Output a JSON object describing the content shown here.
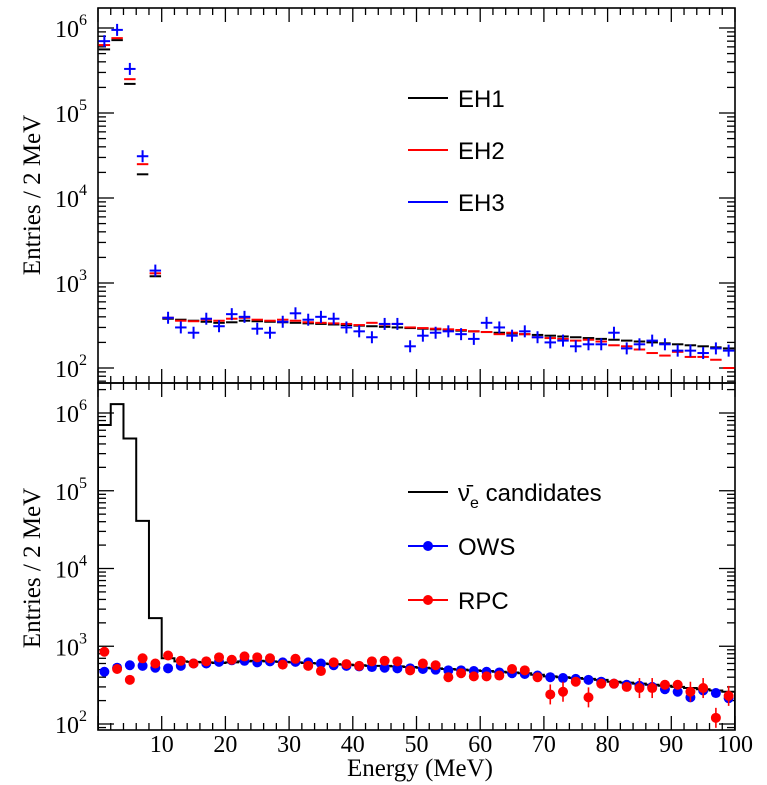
{
  "chart_data": [
    {
      "type": "scatter",
      "panel": "top",
      "ylabel": "Entries / 2 MeV",
      "xlim": [
        0,
        100
      ],
      "ylim": [
        80,
        1000000
      ],
      "yscale": "log",
      "y_tick_labels": [
        {
          "base": "10",
          "exp": "2",
          "value": 100
        },
        {
          "base": "10",
          "exp": "3",
          "value": 1000
        },
        {
          "base": "10",
          "exp": "4",
          "value": 10000
        },
        {
          "base": "10",
          "exp": "5",
          "value": 100000
        },
        {
          "base": "10",
          "exp": "6",
          "value": 1000000
        }
      ],
      "legend_position": "upper-right",
      "series": [
        {
          "name": "EH1",
          "color": "#000000",
          "marker": "dash",
          "x": [
            1,
            3,
            5,
            7,
            9,
            11,
            13,
            15,
            17,
            19,
            21,
            23,
            25,
            27,
            29,
            31,
            33,
            35,
            37,
            39,
            41,
            43,
            45,
            47,
            49,
            51,
            53,
            55,
            57,
            59,
            61,
            63,
            65,
            67,
            69,
            71,
            73,
            75,
            77,
            79,
            81,
            83,
            85,
            87,
            89,
            91,
            93,
            95,
            97,
            99
          ],
          "y": [
            560000,
            720000,
            220000,
            19000,
            1200,
            380,
            370,
            360,
            350,
            340,
            345,
            360,
            355,
            350,
            345,
            340,
            335,
            330,
            325,
            320,
            315,
            310,
            305,
            300,
            295,
            290,
            285,
            280,
            275,
            270,
            265,
            260,
            255,
            250,
            245,
            240,
            235,
            230,
            225,
            220,
            215,
            210,
            205,
            200,
            195,
            190,
            185,
            180,
            175,
            170
          ]
        },
        {
          "name": "EH2",
          "color": "#ff0000",
          "marker": "dash",
          "x": [
            1,
            3,
            5,
            7,
            9,
            11,
            13,
            15,
            17,
            19,
            21,
            23,
            25,
            27,
            29,
            31,
            33,
            35,
            37,
            39,
            41,
            43,
            45,
            47,
            49,
            51,
            53,
            55,
            57,
            59,
            61,
            63,
            65,
            67,
            69,
            71,
            73,
            75,
            77,
            79,
            81,
            83,
            85,
            87,
            89,
            91,
            93,
            95,
            97,
            99
          ],
          "y": [
            630000,
            760000,
            250000,
            25000,
            1300,
            390,
            360,
            355,
            370,
            360,
            380,
            390,
            370,
            360,
            370,
            360,
            345,
            340,
            335,
            330,
            320,
            340,
            325,
            330,
            300,
            295,
            290,
            285,
            280,
            270,
            265,
            250,
            260,
            250,
            230,
            225,
            220,
            210,
            215,
            205,
            185,
            180,
            165,
            150,
            140,
            155,
            135,
            135,
            125,
            100
          ]
        },
        {
          "name": "EH3",
          "color": "#0000ff",
          "marker": "cross",
          "x": [
            1,
            3,
            5,
            7,
            9,
            11,
            13,
            15,
            17,
            19,
            21,
            23,
            25,
            27,
            29,
            31,
            33,
            35,
            37,
            39,
            41,
            43,
            45,
            47,
            49,
            51,
            53,
            55,
            57,
            59,
            61,
            63,
            65,
            67,
            69,
            71,
            73,
            75,
            77,
            79,
            81,
            83,
            85,
            87,
            89,
            91,
            93,
            95,
            97,
            99
          ],
          "y": [
            700000,
            950000,
            330000,
            31000,
            1400,
            390,
            300,
            260,
            380,
            310,
            430,
            400,
            290,
            260,
            350,
            440,
            370,
            400,
            380,
            300,
            270,
            230,
            330,
            330,
            180,
            240,
            260,
            270,
            250,
            220,
            340,
            300,
            240,
            270,
            230,
            200,
            210,
            180,
            190,
            190,
            260,
            170,
            190,
            210,
            190,
            160,
            160,
            150,
            170,
            160
          ]
        }
      ]
    },
    {
      "type": "line",
      "panel": "bottom",
      "xlabel": "Energy (MeV)",
      "ylabel": "Entries / 2 MeV",
      "xlim": [
        0,
        100
      ],
      "ylim": [
        100,
        2000000
      ],
      "yscale": "log",
      "x_ticks": [
        10,
        20,
        30,
        40,
        50,
        60,
        70,
        80,
        90,
        100
      ],
      "y_tick_labels": [
        {
          "base": "10",
          "exp": "2",
          "value": 100
        },
        {
          "base": "10",
          "exp": "3",
          "value": 1000
        },
        {
          "base": "10",
          "exp": "4",
          "value": 10000
        },
        {
          "base": "10",
          "exp": "5",
          "value": 100000
        },
        {
          "base": "10",
          "exp": "6",
          "value": 1000000
        }
      ],
      "legend_position": "upper-right",
      "series": [
        {
          "name": "ν̄e candidates",
          "legend_main": "ν̄",
          "legend_sub": "e",
          "legend_rest": " candidates",
          "color": "#000000",
          "marker": "histogram",
          "x": [
            1,
            3,
            5,
            7,
            9,
            11,
            13,
            15,
            17,
            19,
            21,
            23,
            25,
            27,
            29,
            31,
            33,
            35,
            37,
            39,
            41,
            43,
            45,
            47,
            49,
            51,
            53,
            55,
            57,
            59,
            61,
            63,
            65,
            67,
            69,
            71,
            73,
            75,
            77,
            79,
            81,
            83,
            85,
            87,
            89,
            91,
            93,
            95,
            97,
            99
          ],
          "y": [
            700000,
            1300000,
            470000,
            41000,
            2300,
            700,
            640,
            630,
            620,
            610,
            620,
            640,
            650,
            640,
            630,
            620,
            610,
            600,
            590,
            580,
            570,
            560,
            560,
            550,
            540,
            530,
            520,
            510,
            500,
            490,
            480,
            470,
            460,
            450,
            430,
            410,
            400,
            390,
            380,
            370,
            350,
            340,
            330,
            320,
            310,
            300,
            290,
            280,
            270,
            260
          ]
        },
        {
          "name": "OWS",
          "color": "#0000ff",
          "marker": "circle",
          "x": [
            1,
            3,
            5,
            7,
            9,
            11,
            13,
            15,
            17,
            19,
            21,
            23,
            25,
            27,
            29,
            31,
            33,
            35,
            37,
            39,
            41,
            43,
            45,
            47,
            49,
            51,
            53,
            55,
            57,
            59,
            61,
            63,
            65,
            67,
            69,
            71,
            73,
            75,
            77,
            79,
            81,
            83,
            85,
            87,
            89,
            91,
            93,
            95,
            97,
            99
          ],
          "y": [
            470,
            530,
            570,
            560,
            530,
            520,
            560,
            600,
            600,
            630,
            660,
            650,
            620,
            640,
            620,
            630,
            620,
            600,
            570,
            560,
            550,
            540,
            530,
            520,
            520,
            510,
            500,
            490,
            490,
            480,
            470,
            460,
            450,
            440,
            420,
            400,
            390,
            380,
            370,
            350,
            330,
            320,
            310,
            300,
            280,
            260,
            220,
            270,
            250,
            215
          ]
        },
        {
          "name": "RPC",
          "color": "#ff0000",
          "marker": "circle",
          "x": [
            1,
            3,
            5,
            7,
            9,
            11,
            13,
            15,
            17,
            19,
            21,
            23,
            25,
            27,
            29,
            31,
            33,
            35,
            37,
            39,
            41,
            43,
            45,
            47,
            49,
            51,
            53,
            55,
            57,
            59,
            61,
            63,
            65,
            67,
            69,
            71,
            73,
            75,
            77,
            79,
            81,
            83,
            85,
            87,
            89,
            91,
            93,
            95,
            97,
            99
          ],
          "y": [
            850,
            510,
            370,
            700,
            600,
            760,
            650,
            600,
            640,
            720,
            670,
            740,
            720,
            700,
            580,
            690,
            560,
            480,
            620,
            590,
            560,
            640,
            650,
            640,
            490,
            600,
            570,
            400,
            450,
            410,
            410,
            420,
            510,
            490,
            400,
            240,
            260,
            350,
            220,
            330,
            330,
            300,
            290,
            290,
            320,
            320,
            260,
            290,
            120,
            230
          ]
        }
      ]
    }
  ]
}
